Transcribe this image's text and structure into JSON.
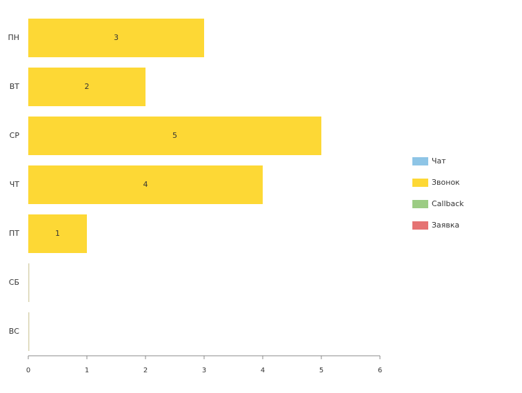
{
  "chart_data": {
    "type": "bar",
    "orientation": "horizontal",
    "stacked": true,
    "categories": [
      "ПН",
      "ВТ",
      "СР",
      "ЧТ",
      "ПТ",
      "СБ",
      "ВС"
    ],
    "series": [
      {
        "name": "Чат",
        "color": "#8ec5e6",
        "values": [
          0,
          0,
          0,
          0,
          0,
          0,
          0
        ]
      },
      {
        "name": "Звонок",
        "color": "#fdd835",
        "values": [
          3,
          2,
          5,
          4,
          1,
          0,
          0
        ]
      },
      {
        "name": "Callback",
        "color": "#9ccc84",
        "values": [
          0,
          0,
          0,
          0,
          0,
          0,
          0
        ]
      },
      {
        "name": "Заявка",
        "color": "#e57373",
        "values": [
          0,
          0,
          0,
          0,
          0,
          0,
          0
        ]
      }
    ],
    "data_labels": [
      "3",
      "2",
      "5",
      "4",
      "1",
      "",
      ""
    ],
    "xlim": [
      0,
      6
    ],
    "x_ticks": [
      "0",
      "1",
      "2",
      "3",
      "4",
      "5",
      "6"
    ],
    "grid": false,
    "legend_position": "right",
    "title": "",
    "xlabel": "",
    "ylabel": ""
  }
}
